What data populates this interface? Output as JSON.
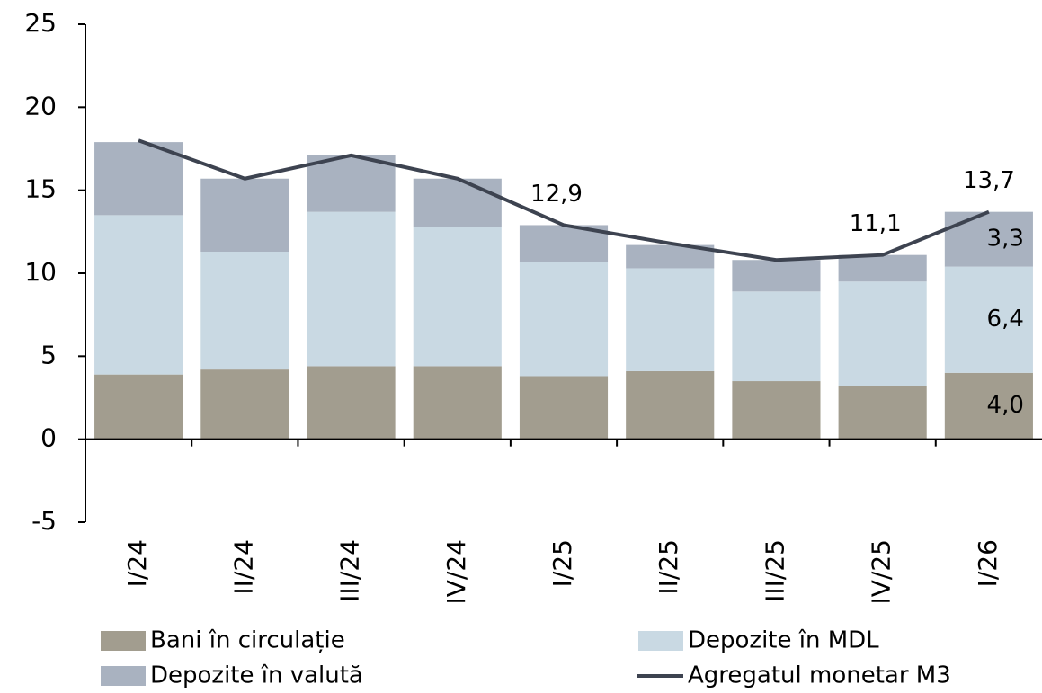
{
  "chart_data": {
    "type": "bar",
    "categories": [
      "I/24",
      "II/24",
      "III/24",
      "IV/24",
      "I/25",
      "II/25",
      "III/25",
      "IV/25",
      "I/26"
    ],
    "series": [
      {
        "name": "Bani în circulație",
        "color": "#a29d8f",
        "values": [
          3.9,
          4.2,
          4.4,
          4.4,
          3.8,
          4.1,
          3.5,
          3.2,
          4.0
        ],
        "value_labels": [
          null,
          null,
          null,
          null,
          null,
          null,
          null,
          null,
          "4,0"
        ]
      },
      {
        "name": "Depozite în MDL",
        "color": "#c9d9e3",
        "values": [
          9.6,
          7.1,
          9.3,
          8.4,
          6.9,
          6.2,
          5.4,
          6.3,
          6.4
        ],
        "value_labels": [
          null,
          null,
          null,
          null,
          null,
          null,
          null,
          null,
          "6,4"
        ]
      },
      {
        "name": "Depozite în valută",
        "color": "#a9b2c0",
        "values": [
          4.4,
          4.4,
          3.4,
          2.9,
          2.2,
          1.4,
          1.9,
          1.6,
          3.3
        ],
        "value_labels": [
          null,
          null,
          null,
          null,
          null,
          null,
          null,
          null,
          "3,3"
        ]
      },
      {
        "name": "Agregatul monetar M3",
        "type": "line",
        "color": "#3d4350",
        "values": [
          18.0,
          15.7,
          17.1,
          15.7,
          12.9,
          11.8,
          10.8,
          11.1,
          13.7
        ],
        "value_labels": [
          null,
          null,
          null,
          null,
          "12,9",
          null,
          null,
          "11,1",
          "13,7"
        ]
      }
    ],
    "stacked": true,
    "ylim": [
      -5,
      25
    ],
    "yticks": [
      -5,
      0,
      5,
      10,
      15,
      20,
      25
    ]
  }
}
